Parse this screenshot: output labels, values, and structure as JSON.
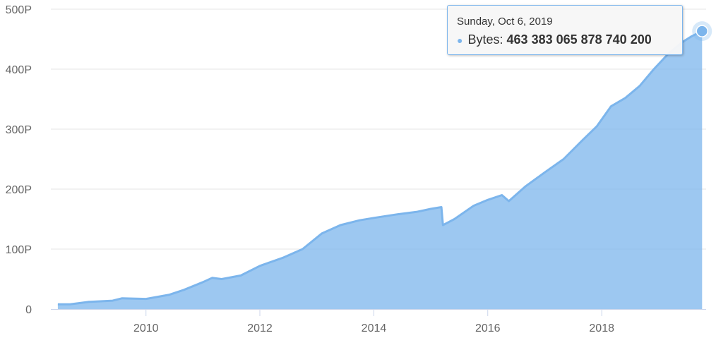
{
  "chart_data": {
    "type": "area",
    "title": "",
    "xlabel": "",
    "ylabel": "",
    "x_ticks": [
      "2010",
      "2012",
      "2014",
      "2016",
      "2018"
    ],
    "y_ticks": [
      "0",
      "100P",
      "200P",
      "300P",
      "400P",
      "500P"
    ],
    "xlim": [
      "2008-05-01",
      "2019-11-01"
    ],
    "ylim": [
      0,
      500
    ],
    "y_unit": "P (petabytes)",
    "grid": true,
    "legend": "none",
    "series": [
      {
        "name": "Bytes",
        "color": "#7cb5ec",
        "points": [
          [
            "2008-06-15",
            8
          ],
          [
            "2008-09-01",
            8
          ],
          [
            "2009-01-01",
            12
          ],
          [
            "2009-06-01",
            14
          ],
          [
            "2009-08-01",
            18
          ],
          [
            "2010-01-01",
            17
          ],
          [
            "2010-06-01",
            24
          ],
          [
            "2010-09-01",
            32
          ],
          [
            "2011-01-01",
            45
          ],
          [
            "2011-03-01",
            52
          ],
          [
            "2011-05-01",
            50
          ],
          [
            "2011-09-01",
            56
          ],
          [
            "2012-01-01",
            72
          ],
          [
            "2012-06-01",
            86
          ],
          [
            "2012-10-01",
            100
          ],
          [
            "2013-02-01",
            126
          ],
          [
            "2013-06-01",
            140
          ],
          [
            "2013-10-01",
            148
          ],
          [
            "2014-01-01",
            152
          ],
          [
            "2014-06-01",
            158
          ],
          [
            "2014-10-01",
            162
          ],
          [
            "2015-01-01",
            167
          ],
          [
            "2015-03-10",
            170
          ],
          [
            "2015-03-20",
            140
          ],
          [
            "2015-06-01",
            150
          ],
          [
            "2015-10-01",
            172
          ],
          [
            "2016-01-01",
            182
          ],
          [
            "2016-04-01",
            190
          ],
          [
            "2016-05-15",
            180
          ],
          [
            "2016-09-01",
            205
          ],
          [
            "2017-01-01",
            228
          ],
          [
            "2017-05-01",
            250
          ],
          [
            "2017-09-01",
            282
          ],
          [
            "2017-12-01",
            305
          ],
          [
            "2018-03-01",
            338
          ],
          [
            "2018-06-01",
            352
          ],
          [
            "2018-09-01",
            372
          ],
          [
            "2018-12-01",
            400
          ],
          [
            "2019-03-01",
            425
          ],
          [
            "2019-06-01",
            445
          ],
          [
            "2019-08-01",
            455
          ],
          [
            "2019-10-06",
            463.383
          ]
        ]
      }
    ],
    "tooltip": {
      "date": "Sunday, Oct 6, 2019",
      "series_name": "Bytes",
      "value_text": "463 383 065 878 740 200",
      "point": [
        "2019-10-06",
        463.383
      ]
    }
  }
}
